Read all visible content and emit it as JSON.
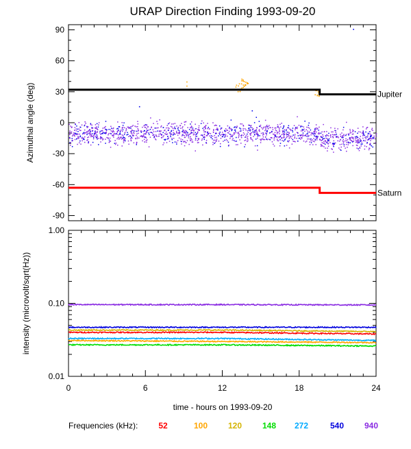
{
  "chart_data": [
    {
      "type": "scatter",
      "title": "URAP Direction Finding  1993-09-20",
      "ylabel": "Azimuthal angle (deg)",
      "xlim": [
        0,
        24
      ],
      "ylim": [
        -95,
        95
      ],
      "yticks": [
        90,
        60,
        30,
        0,
        -30,
        -60,
        -90
      ],
      "grid": false,
      "reference_lines": [
        {
          "name": "Jupiter",
          "color": "#000000",
          "segments": [
            [
              0,
              19.6,
              32
            ],
            [
              19.6,
              24,
              27.5
            ]
          ]
        },
        {
          "name": "Saturn",
          "color": "#ff0000",
          "segments": [
            [
              0,
              19.6,
              -63
            ],
            [
              19.6,
              24,
              -68
            ]
          ]
        }
      ],
      "scatter_description": {
        "main_cloud_color": "#8a2be2",
        "main_cloud_secondary_color": "#0000ee",
        "main_cloud_center": [
          [
            0,
            -10
          ],
          [
            19,
            -10
          ],
          [
            20,
            -15
          ],
          [
            24,
            -15
          ]
        ],
        "main_cloud_spread_deg": 9,
        "outlier_color": "#ffa500",
        "outlier_cluster": {
          "x_range": [
            13.0,
            14.0
          ],
          "y_range": [
            30,
            43
          ]
        },
        "outlier_cluster_2": {
          "x_range": [
            19.2,
            19.6
          ],
          "y_range": [
            26,
            33
          ]
        },
        "isolated_points": [
          [
            9.2,
            40
          ],
          [
            9.2,
            36
          ],
          [
            5.5,
            16
          ],
          [
            14.3,
            12
          ],
          [
            22.2,
            91
          ]
        ]
      }
    },
    {
      "type": "line",
      "ylabel": "intensity (microvolt/sqrt(Hz))",
      "xlabel": "time - hours on 1993-09-20",
      "xlim": [
        0,
        24
      ],
      "xticks": [
        0,
        6,
        12,
        18,
        24
      ],
      "xtick_labels": [
        "0",
        "6",
        "12",
        "18",
        "24"
      ],
      "yscale": "log",
      "ylim": [
        0.01,
        1.0
      ],
      "yticks": [
        1.0,
        0.1,
        0.01
      ],
      "ytick_labels": [
        "1.00",
        "0.10",
        "0.01"
      ],
      "grid": false,
      "legend_title": "Frequencies (kHz):",
      "legend_placement": "bottom",
      "series": [
        {
          "name": "52",
          "color": "#ff0000",
          "values": [
            [
              0,
              0.04
            ],
            [
              12,
              0.04
            ],
            [
              24,
              0.038
            ]
          ]
        },
        {
          "name": "100",
          "color": "#ffa500",
          "values": [
            [
              0,
              0.031
            ],
            [
              12,
              0.03
            ],
            [
              24,
              0.029
            ]
          ]
        },
        {
          "name": "120",
          "color": "#d4b400",
          "values": [
            [
              0,
              0.043
            ],
            [
              12,
              0.043
            ],
            [
              24,
              0.041
            ]
          ]
        },
        {
          "name": "148",
          "color": "#00dd00",
          "values": [
            [
              0,
              0.027
            ],
            [
              12,
              0.027
            ],
            [
              24,
              0.026
            ]
          ]
        },
        {
          "name": "272",
          "color": "#00aaff",
          "values": [
            [
              0,
              0.033
            ],
            [
              12,
              0.033
            ],
            [
              24,
              0.031
            ]
          ]
        },
        {
          "name": "540",
          "color": "#0000dd",
          "values": [
            [
              0,
              0.047
            ],
            [
              12,
              0.047
            ],
            [
              24,
              0.047
            ]
          ]
        },
        {
          "name": "940",
          "color": "#8a2be2",
          "values": [
            [
              0,
              0.096
            ],
            [
              12,
              0.096
            ],
            [
              24,
              0.095
            ]
          ]
        }
      ]
    }
  ]
}
